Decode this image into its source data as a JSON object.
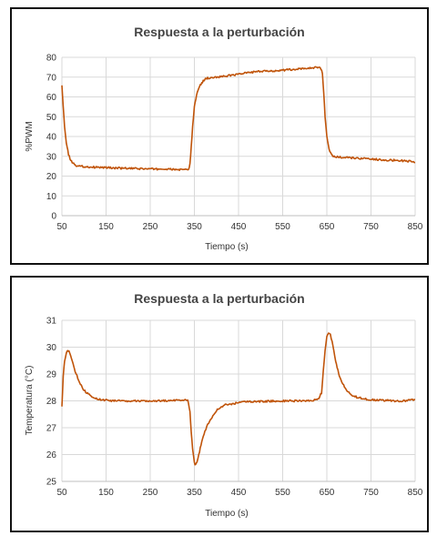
{
  "series_color": "#c0540a",
  "chart_data": [
    {
      "type": "line",
      "title": "Respuesta a la perturbación",
      "xlabel": "Tiempo (s)",
      "ylabel": "%PWM",
      "xlim": [
        50,
        850
      ],
      "ylim": [
        0,
        80
      ],
      "xticks": [
        50,
        150,
        250,
        350,
        450,
        550,
        650,
        750,
        850
      ],
      "yticks": [
        0,
        10,
        20,
        30,
        40,
        50,
        60,
        70,
        80
      ],
      "grid": true,
      "series": [
        {
          "x": [
            50,
            53,
            56,
            60,
            65,
            70,
            75,
            80,
            90,
            100,
            120,
            150,
            180,
            210,
            250,
            280,
            300,
            320,
            330,
            337,
            340,
            343,
            346,
            350,
            355,
            360,
            365,
            370,
            375,
            380,
            390,
            400,
            420,
            450,
            480,
            500,
            530,
            550,
            580,
            600,
            620,
            635,
            640,
            643,
            646,
            650,
            655,
            660,
            665,
            670,
            680,
            700,
            720,
            750,
            780,
            800,
            820,
            840,
            850
          ],
          "y": [
            66,
            55,
            45,
            37,
            31,
            28,
            26.5,
            25.5,
            25,
            24.8,
            24.5,
            24.3,
            24,
            23.8,
            23.6,
            23.5,
            23.4,
            23.2,
            23.2,
            23,
            26,
            35,
            45,
            55,
            61,
            64.5,
            66.5,
            68,
            69,
            69.5,
            69.8,
            70,
            70.5,
            71.5,
            72.5,
            72.8,
            73.2,
            73.5,
            74,
            74.3,
            74.8,
            75,
            72,
            62,
            50,
            40,
            33.5,
            31,
            30,
            29.8,
            29.5,
            29.2,
            29,
            28.6,
            28.2,
            28,
            27.8,
            27.5,
            26.8
          ]
        }
      ]
    },
    {
      "type": "line",
      "title": "Respuesta a la perturbación",
      "xlabel": "Tiempo (s)",
      "ylabel": "Temperatura (°C)",
      "xlim": [
        50,
        850
      ],
      "ylim": [
        25,
        31
      ],
      "xticks": [
        50,
        150,
        250,
        350,
        450,
        550,
        650,
        750,
        850
      ],
      "yticks": [
        25,
        26,
        27,
        28,
        29,
        30,
        31
      ],
      "grid": true,
      "series": [
        {
          "x": [
            50,
            53,
            56,
            60,
            63,
            66,
            70,
            75,
            80,
            90,
            100,
            110,
            120,
            140,
            160,
            200,
            250,
            300,
            335,
            340,
            343,
            346,
            350,
            353,
            356,
            360,
            365,
            370,
            380,
            390,
            400,
            410,
            420,
            440,
            460,
            480,
            500,
            550,
            600,
            630,
            638,
            642,
            646,
            650,
            654,
            658,
            662,
            666,
            670,
            675,
            680,
            690,
            700,
            710,
            720,
            740,
            760,
            780,
            800,
            830,
            850
          ],
          "y": [
            27.8,
            28.9,
            29.5,
            29.8,
            29.9,
            29.85,
            29.7,
            29.4,
            29.1,
            28.7,
            28.4,
            28.25,
            28.1,
            28.05,
            28,
            28,
            28,
            28.02,
            28.05,
            27.6,
            26.8,
            26.2,
            25.7,
            25.6,
            25.75,
            26,
            26.35,
            26.7,
            27.1,
            27.4,
            27.65,
            27.78,
            27.85,
            27.9,
            27.95,
            27.97,
            27.98,
            28,
            28,
            28.05,
            28.3,
            29.1,
            29.9,
            30.4,
            30.5,
            30.45,
            30.2,
            29.85,
            29.5,
            29.15,
            28.85,
            28.5,
            28.3,
            28.2,
            28.12,
            28.06,
            28.03,
            28.02,
            28,
            28,
            28.05
          ]
        }
      ]
    }
  ]
}
